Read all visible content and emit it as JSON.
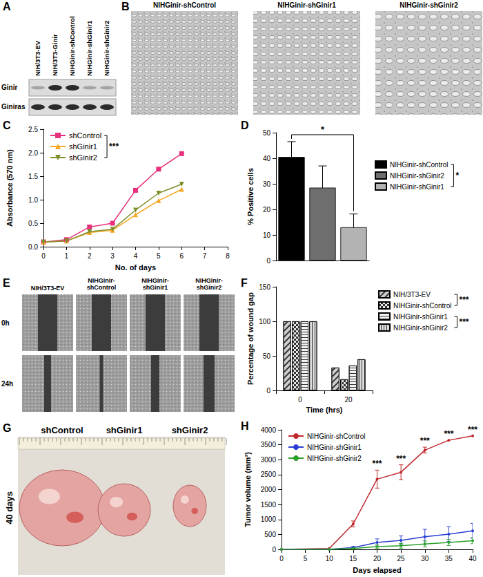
{
  "chart_data": [
    {
      "panel": "C",
      "type": "line",
      "x_label": "No. of days",
      "y_label": "Absorbance (570 nm)",
      "x": [
        0,
        1,
        2,
        3,
        4,
        5,
        6
      ],
      "series": [
        {
          "name": "shControl",
          "color": "#e8307c",
          "marker": "square",
          "values": [
            0.1,
            0.15,
            0.42,
            0.5,
            1.2,
            1.65,
            1.98
          ]
        },
        {
          "name": "shGinir1",
          "color": "#f5a623",
          "marker": "triangle",
          "values": [
            0.1,
            0.12,
            0.3,
            0.35,
            0.68,
            0.98,
            1.22
          ]
        },
        {
          "name": "shGinir2",
          "color": "#7d8f2a",
          "marker": "triangle-down",
          "values": [
            0.1,
            0.12,
            0.32,
            0.37,
            0.78,
            1.14,
            1.33
          ]
        }
      ],
      "xlim": [
        0,
        8
      ],
      "xticks": [
        0,
        1,
        2,
        3,
        4,
        5,
        6,
        7,
        8
      ],
      "ylim": [
        0,
        2.5
      ],
      "yticks": [
        {
          "value": 0,
          "label": "0.0"
        },
        0.5,
        {
          "value": 1,
          "label": "1.0"
        },
        1.5,
        {
          "value": 2,
          "label": "2.0"
        },
        2.5
      ],
      "grid": false,
      "legend": "top-left",
      "annotations": [
        {
          "text": "***",
          "between": [
            "shControl",
            "shGinir2"
          ]
        }
      ]
    },
    {
      "panel": "D",
      "type": "bar",
      "y_label": "% Positive cells",
      "categories": [
        null,
        null,
        null
      ],
      "series": [
        {
          "name": "NIHGinir-shControl",
          "color": "#000000",
          "values": [
            40.5,
            null,
            null
          ],
          "errors": [
            6,
            null,
            null
          ]
        },
        {
          "name": "NIHGinir-shGinir2",
          "color": "#6e6e6e",
          "values": [
            null,
            28.5,
            null
          ],
          "errors": [
            null,
            8.5,
            null
          ]
        },
        {
          "name": "NIHGinir-shGinir1",
          "color": "#b3b3b3",
          "values": [
            null,
            null,
            13
          ],
          "errors": [
            null,
            null,
            5.2
          ]
        }
      ],
      "ylim": [
        0,
        50
      ],
      "yticks": [
        0,
        10,
        20,
        30,
        40,
        50
      ],
      "grid": false,
      "legend": "right",
      "tick_labels": "y",
      "annotations": [
        {
          "text": "*",
          "between": [
            "NIHGinir-shControl",
            "NIHGinir-shGinir1"
          ]
        }
      ]
    },
    {
      "panel": "F",
      "type": "bar",
      "x_label": "Time (hrs)",
      "y_label": "Percentage of wound gap",
      "categories": [
        "0",
        "20"
      ],
      "series": [
        {
          "name": "NIH/3T3-EV",
          "color": "#cfcfcf",
          "values": [
            100,
            33
          ]
        },
        {
          "name": "NIHGinir-shControl",
          "color": "#e6e6e6",
          "values": [
            100,
            16
          ]
        },
        {
          "name": "NIHGinir-shGinir1",
          "color": "#f2f2f2",
          "values": [
            100,
            36
          ]
        },
        {
          "name": "NIHGinir-shGinir2",
          "color": "#dcdcdc",
          "values": [
            100,
            45
          ]
        }
      ],
      "ylim": [
        0,
        150
      ],
      "yticks": [
        0,
        50,
        100,
        150
      ],
      "grid": false,
      "legend": "right",
      "annotations": [
        {
          "text": "***",
          "between": [
            "NIH/3T3-EV",
            "NIHGinir-shControl"
          ]
        },
        {
          "text": "***",
          "between": [
            "NIHGinir-shGinir1",
            "NIHGinir-shGinir2"
          ]
        }
      ]
    },
    {
      "panel": "H",
      "type": "line",
      "x_label": "Days elapsed",
      "y_label": "Tumor volume (mm³)",
      "x": [
        0,
        10,
        15,
        20,
        25,
        30,
        35,
        40
      ],
      "series": [
        {
          "name": "NIHGinir-shControl",
          "color": "#c0282d",
          "marker": "circle",
          "values": [
            0,
            30,
            850,
            2350,
            2580,
            3320,
            3650,
            3800
          ],
          "errors": [
            0,
            0,
            100,
            300,
            250,
            100,
            0,
            0
          ]
        },
        {
          "name": "NIHGinir-shGinir1",
          "color": "#2a3fd1",
          "marker": "circle",
          "values": [
            0,
            0,
            60,
            230,
            300,
            420,
            510,
            620
          ],
          "errors": [
            0,
            0,
            40,
            120,
            150,
            250,
            250,
            250
          ]
        },
        {
          "name": "NIHGinir-shGinir2",
          "color": "#2ca02c",
          "marker": "circle",
          "values": [
            0,
            0,
            30,
            90,
            120,
            180,
            230,
            290
          ],
          "errors": [
            0,
            0,
            20,
            60,
            80,
            100,
            100,
            100
          ]
        }
      ],
      "xlim": [
        0,
        40
      ],
      "xticks": [
        0,
        5,
        10,
        15,
        20,
        25,
        30,
        35,
        40
      ],
      "ylim": [
        0,
        4000
      ],
      "yticks": [
        0,
        500,
        1000,
        1500,
        2000,
        2500,
        3000,
        3500,
        4000
      ],
      "grid": false,
      "legend": "top-left",
      "annotations": [
        {
          "x": 20,
          "text": "***",
          "series": "NIHGinir-shControl"
        },
        {
          "x": 25,
          "text": "***",
          "series": "NIHGinir-shControl"
        },
        {
          "x": 30,
          "text": "***",
          "series": "NIHGinir-shControl"
        },
        {
          "x": 35,
          "text": "***",
          "series": "NIHGinir-shControl"
        },
        {
          "x": 40,
          "text": "***",
          "series": "NIHGinir-shControl"
        }
      ]
    }
  ],
  "figure_panels": [
    {
      "panel": "A",
      "lanes": [
        "NIH/3T3-EV",
        "NIH/3T3-Ginir",
        "NIHGinir-shControl",
        "NIHGinir-shGinir1",
        "NIHGinir-shGinir2"
      ],
      "bands": [
        {
          "name": "Ginir",
          "strong": [
            false,
            true,
            true,
            false,
            false
          ]
        },
        {
          "name": "Giniras",
          "strong": [
            true,
            true,
            true,
            true,
            true
          ]
        }
      ]
    },
    {
      "panel": "B",
      "images": [
        "NIHGinir-shControl",
        "NIHGinir-shGinir1",
        "NIHGinir-shGinir2"
      ]
    },
    {
      "panel": "E",
      "columns": [
        "NIH/3T3-EV",
        "NIHGinir-shControl",
        "NIHGinir-shGinir1",
        "NIHGinir-shGinir2"
      ],
      "rows": [
        "0h",
        "24h"
      ]
    },
    {
      "panel": "G",
      "label": "40 days",
      "tumors": [
        "shControl",
        "shGinir1",
        "shGinir2"
      ]
    }
  ]
}
